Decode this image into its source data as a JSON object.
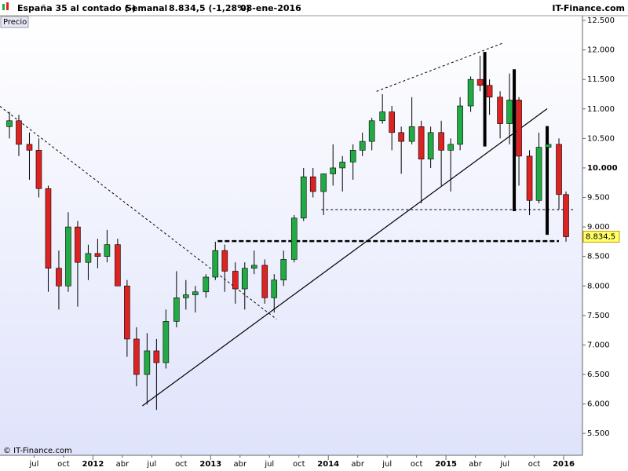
{
  "header": {
    "instrument": "España 35 al contado (-)",
    "period": "Semanal",
    "quote": "8.834,5 (-1,28%)",
    "date": "08-ene-2016",
    "brand": "IT-Finance.com"
  },
  "chart_data": {
    "type": "candlestick",
    "copyright": "© IT-Finance.com",
    "series": [
      {
        "name": "Precio",
        "up_color": "#22aa44",
        "down_color": "#dd2222",
        "x": [
          2011.29,
          2011.37,
          2011.46,
          2011.54,
          2011.62,
          2011.71,
          2011.79,
          2011.87,
          2011.96,
          2012.04,
          2012.12,
          2012.21,
          2012.29,
          2012.37,
          2012.46,
          2012.54,
          2012.62,
          2012.71,
          2012.79,
          2012.87,
          2012.96,
          2013.04,
          2013.12,
          2013.21,
          2013.29,
          2013.37,
          2013.46,
          2013.54,
          2013.62,
          2013.71,
          2013.79,
          2013.87,
          2013.96,
          2014.04,
          2014.12,
          2014.21,
          2014.29,
          2014.37,
          2014.46,
          2014.54,
          2014.62,
          2014.71,
          2014.79,
          2014.87,
          2014.96,
          2015.04,
          2015.12,
          2015.21,
          2015.29,
          2015.37,
          2015.46,
          2015.54,
          2015.62,
          2015.71,
          2015.79,
          2015.87,
          2015.96,
          2016.02
        ],
        "open": [
          10700,
          10800,
          10400,
          10300,
          9650,
          8300,
          8000,
          9000,
          8400,
          8550,
          8500,
          8700,
          8000,
          7100,
          6500,
          6900,
          6700,
          7400,
          7800,
          7850,
          7900,
          8150,
          8600,
          8250,
          7950,
          8300,
          8350,
          7800,
          8100,
          8450,
          9150,
          9850,
          9600,
          9900,
          10000,
          10100,
          10300,
          10450,
          10800,
          10950,
          10600,
          10450,
          10700,
          10150,
          10600,
          10300,
          10400,
          11050,
          11500,
          11400,
          11200,
          10750,
          11150,
          10200,
          9450,
          10350,
          10400,
          9550
        ],
        "high": [
          10950,
          10900,
          10600,
          10500,
          9700,
          8600,
          9250,
          9100,
          8700,
          8800,
          8950,
          8800,
          8100,
          7300,
          7200,
          7100,
          7600,
          8250,
          8100,
          8000,
          8200,
          8750,
          8700,
          8400,
          8400,
          8600,
          8450,
          8200,
          8600,
          9200,
          10000,
          10000,
          9900,
          10400,
          10200,
          10400,
          10600,
          10850,
          11250,
          11050,
          10700,
          11200,
          10800,
          10700,
          10800,
          10500,
          11200,
          11550,
          11900,
          11500,
          11300,
          11600,
          11200,
          10300,
          10600,
          10600,
          10500,
          9600
        ],
        "low": [
          10500,
          10200,
          9800,
          9500,
          7900,
          7600,
          7900,
          7650,
          8100,
          8300,
          8400,
          8000,
          6800,
          6300,
          5990,
          5900,
          6600,
          7300,
          7600,
          7550,
          7800,
          8100,
          7900,
          7700,
          7600,
          8200,
          7700,
          7550,
          8000,
          8400,
          9100,
          9500,
          9200,
          9700,
          9600,
          9800,
          10200,
          10300,
          10750,
          10300,
          9900,
          10400,
          9400,
          10000,
          9700,
          9600,
          10300,
          10950,
          11300,
          10900,
          10500,
          10400,
          9700,
          9200,
          9400,
          10200,
          9300,
          8750
        ],
        "close": [
          10800,
          10400,
          10300,
          9650,
          8300,
          8000,
          9000,
          8400,
          8550,
          8500,
          8700,
          8000,
          7100,
          6500,
          6900,
          6700,
          7400,
          7800,
          7850,
          7900,
          8150,
          8600,
          8250,
          7950,
          8300,
          8350,
          7800,
          8100,
          8450,
          9150,
          9850,
          9600,
          9900,
          10000,
          10100,
          10300,
          10450,
          10800,
          10950,
          10600,
          10450,
          10700,
          10150,
          10600,
          10300,
          10400,
          11050,
          11500,
          11400,
          11200,
          10750,
          11150,
          10200,
          9450,
          10350,
          10400,
          9550,
          8834.5
        ]
      }
    ],
    "last_price": {
      "value": 8834.5,
      "label": "8.834,5"
    },
    "trendlines": [
      {
        "x": [
          2012.42,
          2015.86
        ],
        "y": [
          5968,
          11004
        ],
        "style": "solid",
        "width": 1.2
      },
      {
        "x": [
          2011.21,
          2013.56
        ],
        "y": [
          11044,
          7437
        ],
        "style": "dashed",
        "width": 1
      },
      {
        "x": [
          2014.41,
          2015.48
        ],
        "y": [
          11298,
          12113
        ],
        "style": "dashed",
        "width": 1
      },
      {
        "x": [
          2013.94,
          2016.08
        ],
        "y": [
          9294,
          9294
        ],
        "style": "dashed",
        "width": 1
      },
      {
        "x": [
          2013.06,
          2015.96
        ],
        "y": [
          8760,
          8760
        ],
        "style": "dashed",
        "width": 2.5
      },
      {
        "x": [
          2015.33,
          2015.33
        ],
        "y": [
          11966,
          10363
        ],
        "style": "solid",
        "width": 4
      },
      {
        "x": [
          2015.58,
          2015.58
        ],
        "y": [
          11672,
          9267
        ],
        "style": "solid",
        "width": 4
      },
      {
        "x": [
          2015.86,
          2015.86
        ],
        "y": [
          10710,
          8867
        ],
        "style": "solid",
        "width": 4
      }
    ],
    "xlim": [
      2011.21,
      2016.16
    ],
    "ylim": [
      5130,
      12580
    ],
    "xticks": [
      {
        "value": 2011.5,
        "label": "jul"
      },
      {
        "value": 2011.75,
        "label": "oct"
      },
      {
        "value": 2012,
        "label": "2012"
      },
      {
        "value": 2012.25,
        "label": "abr"
      },
      {
        "value": 2012.5,
        "label": "jul"
      },
      {
        "value": 2012.75,
        "label": "oct"
      },
      {
        "value": 2013,
        "label": "2013"
      },
      {
        "value": 2013.25,
        "label": "abr"
      },
      {
        "value": 2013.5,
        "label": "jul"
      },
      {
        "value": 2013.75,
        "label": "oct"
      },
      {
        "value": 2014,
        "label": "2014"
      },
      {
        "value": 2014.25,
        "label": "abr"
      },
      {
        "value": 2014.5,
        "label": "jul"
      },
      {
        "value": 2014.75,
        "label": "oct"
      },
      {
        "value": 2015,
        "label": "2015"
      },
      {
        "value": 2015.25,
        "label": "abr"
      },
      {
        "value": 2015.5,
        "label": "jul"
      },
      {
        "value": 2015.75,
        "label": "oct"
      },
      {
        "value": 2016,
        "label": "2016"
      }
    ],
    "yticks": [
      {
        "value": 5500,
        "label": "5.500"
      },
      {
        "value": 6000,
        "label": "6.000"
      },
      {
        "value": 6500,
        "label": "6.500"
      },
      {
        "value": 7000,
        "label": "7.000"
      },
      {
        "value": 7500,
        "label": "7.500"
      },
      {
        "value": 8000,
        "label": "8.000"
      },
      {
        "value": 8500,
        "label": "8.500"
      },
      {
        "value": 9000,
        "label": "9.000"
      },
      {
        "value": 9500,
        "label": "9.500"
      },
      {
        "value": 10000,
        "label": "10.000"
      },
      {
        "value": 10500,
        "label": "10.500"
      },
      {
        "value": 11000,
        "label": "11.000"
      },
      {
        "value": 11500,
        "label": "11.500"
      },
      {
        "value": 12000,
        "label": "12.000"
      },
      {
        "value": 12500,
        "label": "12.500"
      }
    ]
  }
}
